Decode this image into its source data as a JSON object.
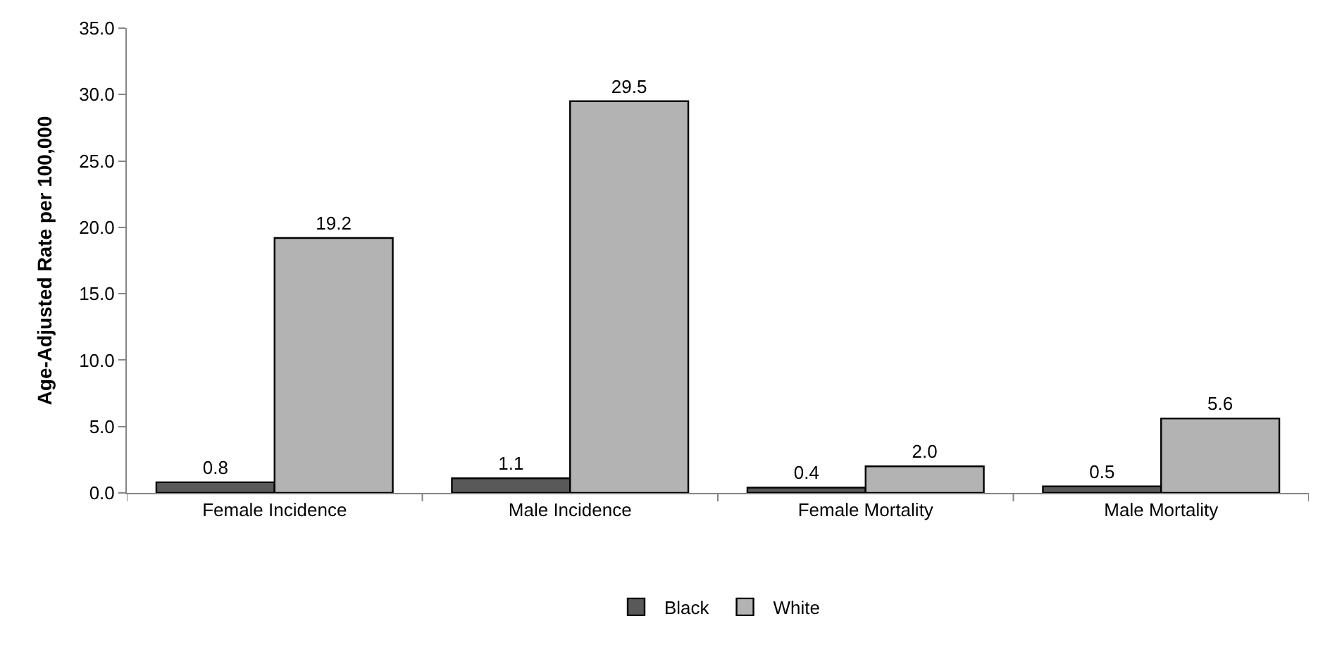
{
  "chart_data": {
    "type": "bar",
    "ylabel": "Age-Adjusted Rate per 100,000",
    "categories": [
      "Female Incidence",
      "Male Incidence",
      "Female Mortality",
      "Male Mortality"
    ],
    "series": [
      {
        "name": "Black",
        "color": "#595959",
        "values": [
          0.8,
          1.1,
          0.4,
          0.5
        ],
        "value_labels": [
          "0.8",
          "1.1",
          "0.4",
          "0.5"
        ]
      },
      {
        "name": "White",
        "color": "#b3b3b3",
        "values": [
          19.2,
          29.5,
          2.0,
          5.6
        ],
        "value_labels": [
          "19.2",
          "29.5",
          "2.0",
          "5.6"
        ]
      }
    ],
    "ylim": [
      0,
      35
    ],
    "yticks": [
      {
        "value": 0,
        "label": "0.0"
      },
      {
        "value": 5,
        "label": "5.0"
      },
      {
        "value": 10,
        "label": "10.0"
      },
      {
        "value": 15,
        "label": "15.0"
      },
      {
        "value": 20,
        "label": "20.0"
      },
      {
        "value": 25,
        "label": "25.0"
      },
      {
        "value": 30,
        "label": "30.0"
      },
      {
        "value": 35,
        "label": "35.0"
      }
    ],
    "legend": "bottom"
  }
}
